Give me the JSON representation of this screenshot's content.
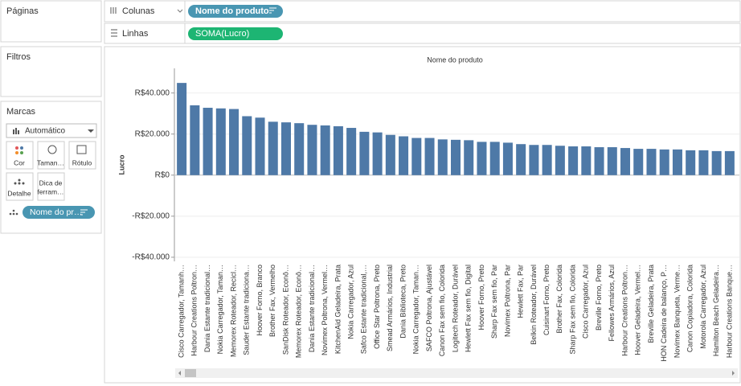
{
  "ui": {
    "pages": "Páginas",
    "filters": "Filtros",
    "marks": "Marcas",
    "mark_type": "Automático",
    "buttons": [
      {
        "lines": [
          "Cor"
        ]
      },
      {
        "lines": [
          "Taman…"
        ]
      },
      {
        "lines": [
          "Rótulo"
        ]
      },
      {
        "lines": [
          "Detalhe"
        ]
      },
      {
        "lines": [
          "Dica de",
          "ferram…"
        ]
      }
    ],
    "mark_pill": "Nome do pr…",
    "columns_label": "Colunas",
    "columns_pill": "Nome do produto",
    "rows_label": "Linhas",
    "rows_pill": "SOMA(Lucro)"
  },
  "chart_data": {
    "type": "bar",
    "title": "Nome do produto",
    "y_label": "Lucro",
    "color": "#4e79a7",
    "grid": true,
    "ylim": [
      -42000,
      52000
    ],
    "yticks": [
      {
        "value": 40000,
        "label": "R$40.000"
      },
      {
        "value": 20000,
        "label": "R$20.000"
      },
      {
        "value": 0,
        "label": "R$0"
      },
      {
        "value": -20000,
        "label": "-R$20.000"
      },
      {
        "value": -40000,
        "label": "-R$40.000"
      }
    ],
    "categories": [
      "Cisco Carregador, Tamanh…",
      "Harbour Creations Poltron…",
      "Dania Estante tradicional…",
      "Nokia Carregador, Taman…",
      "Memorex Roteador, Recicl…",
      "Sauder Estante tradiciona…",
      "Hoover Forno, Branco",
      "Brother Fax, Vermelho",
      "SanDisk Roteador, Econô…",
      "Memorex Roteador, Econô…",
      "Dania Estante tradicional…",
      "Novimex Poltrona, Vermel…",
      "KitchenAid Geladeira, Prata",
      "Nokia Carregador, Azul",
      "Safco Estante tradicional,…",
      "Office Star Poltrona, Preto",
      "Smead Armários, Industrial",
      "Dania Biblioteca, Preto",
      "Nokia Carregador, Taman…",
      "SAFCO Poltrona, Ajustável",
      "Canon Fax sem fio, Colorida",
      "Logitech Roteador, Durável",
      "Hewlett Fax sem fio, Digital",
      "Hoover Forno, Preto",
      "Sharp Fax sem fio, Par",
      "Novimex Poltrona, Par",
      "Hewlett Fax, Par",
      "Belkin Roteador, Durável",
      "Cuisinart Forno, Preto",
      "Brother Fax, Colorida",
      "Sharp Fax sem fio, Colorida",
      "Cisco Carregador, Azul",
      "Breville Forno, Preto",
      "Fellowes Armários, Azul",
      "Harbour Creations Poltron…",
      "Hoover Geladeira, Vermel…",
      "Breville Geladeira, Prata",
      "HON Cadeira de balanço, P…",
      "Novimex Banqueta, Verme…",
      "Canon Copiadora, Colorida",
      "Motorola Carregador, Azul",
      "Hamilton Beach Geladeira…",
      "Harbour Creations Banque…"
    ],
    "values": [
      44900,
      34000,
      32800,
      32500,
      32200,
      28700,
      28000,
      26000,
      25700,
      25300,
      24500,
      24200,
      23800,
      23000,
      21100,
      20800,
      19600,
      18900,
      18100,
      18100,
      17400,
      17200,
      17000,
      16200,
      16200,
      15800,
      15100,
      14700,
      14700,
      14300,
      14000,
      14000,
      13600,
      13600,
      13200,
      12800,
      12800,
      12500,
      12500,
      12100,
      12100,
      11700,
      11700
    ]
  }
}
